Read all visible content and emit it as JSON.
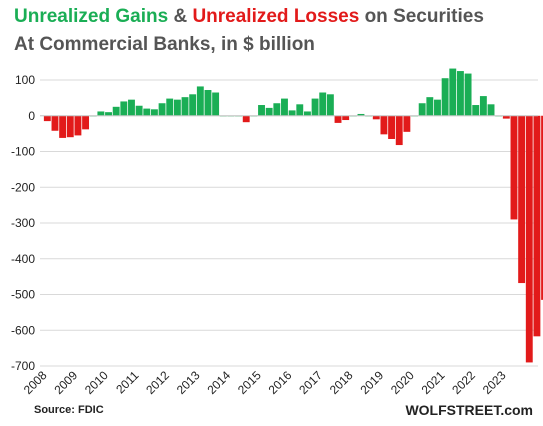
{
  "title": {
    "line1": [
      {
        "text": "Unrealized Gains",
        "color": "#1aae55"
      },
      {
        "text": " & ",
        "color": "#555555"
      },
      {
        "text": "Unrealized Losses",
        "color": "#e21a1a"
      },
      {
        "text": " on Securities",
        "color": "#555555"
      }
    ],
    "line2": "At Commercial  Banks, in $ billion"
  },
  "source": "Source: FDIC",
  "brand": "WOLFSTREET.com",
  "colors": {
    "gain": "#1aae55",
    "loss": "#e21a1a",
    "grid": "#d9d9d9"
  },
  "chart_data": {
    "type": "bar",
    "grid": true,
    "ylim": [
      -700,
      100
    ],
    "yticks": [
      100,
      0,
      -100,
      -200,
      -300,
      -400,
      -500,
      -600,
      -700
    ],
    "xticks": [
      "2008",
      "2009",
      "2010",
      "2011",
      "2012",
      "2013",
      "2014",
      "2015",
      "2016",
      "2017",
      "2018",
      "2019",
      "2020",
      "2021",
      "2022",
      "2023"
    ],
    "start_year": 2008,
    "quarters_per_year": 4,
    "series": [
      {
        "values": [
          -15,
          -42,
          -62,
          -60,
          -55,
          -38,
          0,
          12,
          10,
          25,
          40,
          45,
          28,
          20,
          18,
          35,
          48,
          45,
          52,
          60,
          82,
          72,
          65,
          0,
          0,
          0,
          -18,
          0,
          30,
          22,
          35,
          48,
          15,
          32,
          12,
          48,
          65,
          60,
          -20,
          -12,
          0,
          5,
          0,
          -10,
          -52,
          -65,
          -82,
          -45,
          0,
          35,
          52,
          45,
          105,
          132,
          125,
          118,
          30,
          55,
          32,
          0,
          -8,
          -290,
          -468,
          -690,
          -617,
          -515
        ]
      }
    ]
  }
}
